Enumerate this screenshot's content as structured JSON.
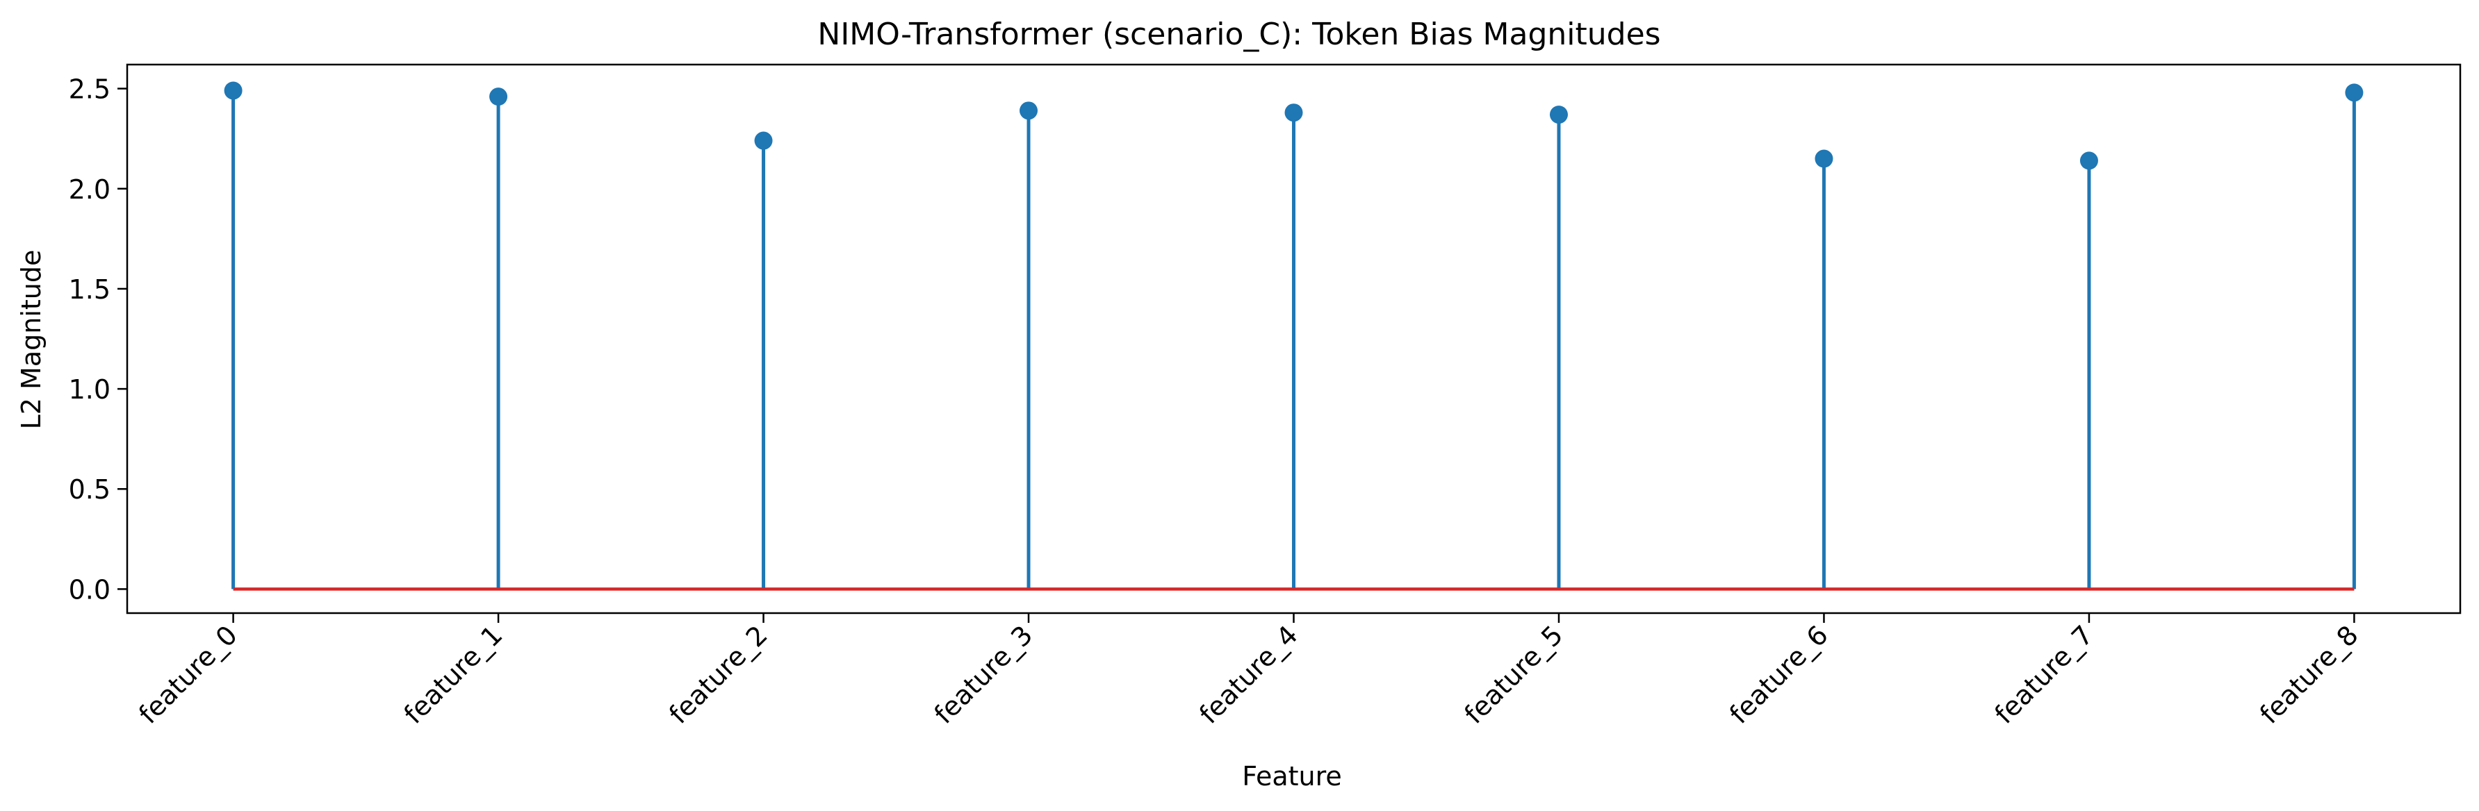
{
  "chart_data": {
    "type": "stem",
    "title": "NIMO-Transformer (scenario_C): Token Bias Magnitudes",
    "xlabel": "Feature",
    "ylabel": "L2 Magnitude",
    "categories": [
      "feature_0",
      "feature_1",
      "feature_2",
      "feature_3",
      "feature_4",
      "feature_5",
      "feature_6",
      "feature_7",
      "feature_8"
    ],
    "values": [
      2.49,
      2.46,
      2.24,
      2.39,
      2.38,
      2.37,
      2.15,
      2.14,
      2.48
    ],
    "ylim": [
      -0.12,
      2.62
    ],
    "yticks": [
      "0.0",
      "0.5",
      "1.0",
      "1.5",
      "2.0",
      "2.5"
    ],
    "grid": false,
    "colors": {
      "stem": "#1f77b4",
      "baseline": "#d62728"
    }
  }
}
